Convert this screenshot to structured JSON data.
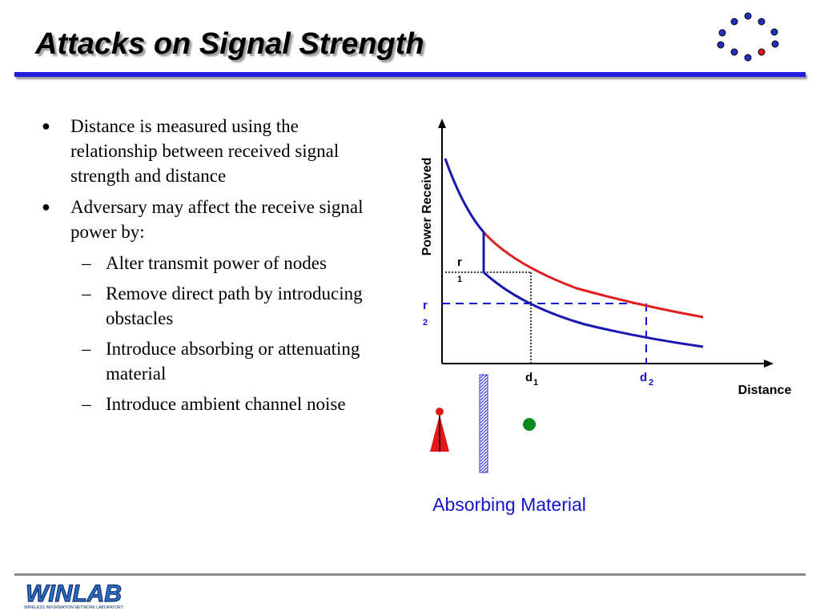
{
  "slide": {
    "title": "Attacks on Signal Strength",
    "bullets": [
      {
        "text": "Distance is measured using the relationship between received signal strength and distance"
      },
      {
        "text": "Adversary may affect the receive signal power by:"
      }
    ],
    "sub_bullets": [
      "Alter transmit power of nodes",
      "Remove direct path by introducing obstacles",
      "Introduce absorbing or attenuating material",
      "Introduce ambient channel noise"
    ]
  },
  "diagram": {
    "y_axis_label": "Power Received",
    "x_axis_label": "Distance",
    "r1": {
      "base": "r",
      "sub": "1"
    },
    "r2": {
      "base": "r",
      "sub": "2"
    },
    "d1": {
      "base": "d",
      "sub": "1"
    },
    "d2": {
      "base": "d",
      "sub": "2"
    },
    "caption": "Absorbing Material",
    "colors": {
      "nominal_curve": "#e02020",
      "attenuated_curve": "#1818b0",
      "r2_guide": "#1414d8",
      "transmitter": "#e01818",
      "receiver": "#0a8a1a",
      "absorber": "#3333cc"
    }
  },
  "footer": {
    "logo_text": "WINLAB",
    "logo_subtitle": "WIRELESS INFORMATION NETWORK LABORATORY"
  }
}
